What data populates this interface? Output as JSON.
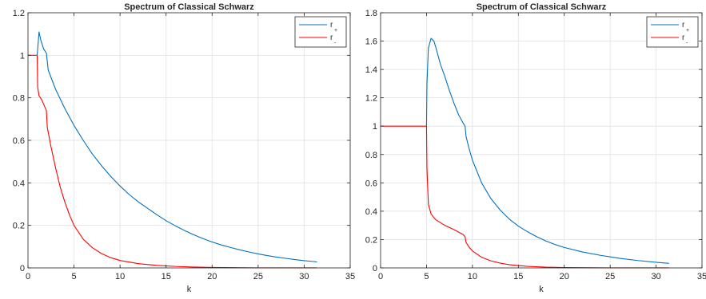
{
  "chart_data": [
    {
      "type": "line",
      "title": "Spectrum of Classical Schwarz",
      "xlabel": "k",
      "ylabel": "",
      "xlim": [
        0,
        35
      ],
      "ylim": [
        0,
        1.2
      ],
      "xticks": [
        0,
        5,
        10,
        15,
        20,
        25,
        30,
        35
      ],
      "yticks": [
        0,
        0.2,
        0.4,
        0.6,
        0.8,
        1,
        1.2
      ],
      "tick_labels_x": [
        "0",
        "5",
        "10",
        "15",
        "20",
        "25",
        "30",
        "35"
      ],
      "tick_labels_y": [
        "0",
        "0.2",
        "0.4",
        "0.6",
        "0.8",
        "1",
        "1.2"
      ],
      "grid": true,
      "legend_position": "top-right",
      "series": [
        {
          "name": "r",
          "name_subscript": "+",
          "color": "#0072bd",
          "points": [
            [
              1.0,
              1.0
            ],
            [
              1.2,
              1.11
            ],
            [
              1.4,
              1.07
            ],
            [
              1.7,
              1.03
            ],
            [
              2.0,
              1.01
            ],
            [
              2.2,
              0.93
            ],
            [
              3,
              0.84
            ],
            [
              4,
              0.75
            ],
            [
              5,
              0.67
            ],
            [
              6,
              0.6
            ],
            [
              7,
              0.535
            ],
            [
              8,
              0.48
            ],
            [
              9,
              0.43
            ],
            [
              10,
              0.385
            ],
            [
              11,
              0.345
            ],
            [
              12,
              0.31
            ],
            [
              13,
              0.28
            ],
            [
              14,
              0.25
            ],
            [
              15,
              0.222
            ],
            [
              16,
              0.198
            ],
            [
              17,
              0.176
            ],
            [
              18,
              0.156
            ],
            [
              19,
              0.138
            ],
            [
              20,
              0.122
            ],
            [
              21,
              0.108
            ],
            [
              22,
              0.096
            ],
            [
              23,
              0.085
            ],
            [
              24,
              0.075
            ],
            [
              25,
              0.066
            ],
            [
              26,
              0.058
            ],
            [
              27,
              0.051
            ],
            [
              28,
              0.045
            ],
            [
              29,
              0.039
            ],
            [
              30,
              0.034
            ],
            [
              31,
              0.03
            ],
            [
              31.4,
              0.028
            ]
          ]
        },
        {
          "name": "r",
          "name_subscript": "-",
          "color": "#ff0000",
          "points": [
            [
              0,
              1.0
            ],
            [
              1.0,
              1.0
            ],
            [
              1.05,
              0.85
            ],
            [
              1.2,
              0.81
            ],
            [
              1.5,
              0.79
            ],
            [
              1.8,
              0.76
            ],
            [
              2.0,
              0.74
            ],
            [
              2.1,
              0.66
            ],
            [
              2.5,
              0.57
            ],
            [
              3,
              0.47
            ],
            [
              3.5,
              0.38
            ],
            [
              4,
              0.31
            ],
            [
              4.5,
              0.25
            ],
            [
              5,
              0.2
            ],
            [
              6,
              0.135
            ],
            [
              7,
              0.095
            ],
            [
              8,
              0.067
            ],
            [
              9,
              0.048
            ],
            [
              10,
              0.035
            ],
            [
              12,
              0.02
            ],
            [
              14,
              0.012
            ],
            [
              16,
              0.007
            ],
            [
              18,
              0.004
            ],
            [
              20,
              0.002
            ],
            [
              25,
              0.0005
            ],
            [
              31.4,
              0.0001
            ]
          ]
        }
      ]
    },
    {
      "type": "line",
      "title": "Spectrum of Classical Schwarz",
      "xlabel": "k",
      "ylabel": "",
      "xlim": [
        0,
        35
      ],
      "ylim": [
        0,
        1.8
      ],
      "xticks": [
        0,
        5,
        10,
        15,
        20,
        25,
        30,
        35
      ],
      "yticks": [
        0,
        0.2,
        0.4,
        0.6,
        0.8,
        1,
        1.2,
        1.4,
        1.6,
        1.8
      ],
      "tick_labels_x": [
        "0",
        "5",
        "10",
        "15",
        "20",
        "25",
        "30",
        "35"
      ],
      "tick_labels_y": [
        "0",
        "0.2",
        "0.4",
        "0.6",
        "0.8",
        "1",
        "1.2",
        "1.4",
        "1.6",
        "1.8"
      ],
      "grid": true,
      "legend_position": "top-right",
      "series": [
        {
          "name": "r",
          "name_subscript": "+",
          "color": "#0072bd",
          "points": [
            [
              5.0,
              1.0
            ],
            [
              5.05,
              1.3
            ],
            [
              5.2,
              1.55
            ],
            [
              5.5,
              1.62
            ],
            [
              5.8,
              1.6
            ],
            [
              6,
              1.56
            ],
            [
              6.5,
              1.44
            ],
            [
              7,
              1.35
            ],
            [
              7.5,
              1.25
            ],
            [
              8,
              1.16
            ],
            [
              8.5,
              1.08
            ],
            [
              9.0,
              1.02
            ],
            [
              9.2,
              1.0
            ],
            [
              9.3,
              0.93
            ],
            [
              9.6,
              0.85
            ],
            [
              10,
              0.76
            ],
            [
              11,
              0.6
            ],
            [
              12,
              0.49
            ],
            [
              13,
              0.41
            ],
            [
              14,
              0.345
            ],
            [
              15,
              0.295
            ],
            [
              16,
              0.255
            ],
            [
              17,
              0.22
            ],
            [
              18,
              0.19
            ],
            [
              19,
              0.165
            ],
            [
              20,
              0.144
            ],
            [
              22,
              0.112
            ],
            [
              24,
              0.088
            ],
            [
              26,
              0.068
            ],
            [
              28,
              0.052
            ],
            [
              30,
              0.04
            ],
            [
              31.4,
              0.032
            ]
          ]
        },
        {
          "name": "r",
          "name_subscript": "-",
          "color": "#ff0000",
          "points": [
            [
              0,
              1.0
            ],
            [
              5.0,
              1.0
            ],
            [
              5.05,
              0.7
            ],
            [
              5.2,
              0.45
            ],
            [
              5.5,
              0.38
            ],
            [
              6,
              0.34
            ],
            [
              7,
              0.3
            ],
            [
              8,
              0.27
            ],
            [
              9.0,
              0.235
            ],
            [
              9.2,
              0.22
            ],
            [
              9.3,
              0.18
            ],
            [
              9.6,
              0.15
            ],
            [
              10,
              0.12
            ],
            [
              11,
              0.075
            ],
            [
              12,
              0.05
            ],
            [
              13,
              0.034
            ],
            [
              14,
              0.023
            ],
            [
              16,
              0.011
            ],
            [
              18,
              0.005
            ],
            [
              20,
              0.0025
            ],
            [
              25,
              0.0005
            ],
            [
              31.4,
              0.0001
            ]
          ]
        }
      ]
    }
  ]
}
